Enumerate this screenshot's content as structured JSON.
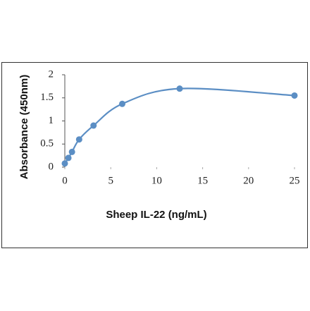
{
  "chart_data": {
    "type": "scatter",
    "x_label": "Sheep IL-22 (ng/mL)",
    "y_label": "Absorbance (450nm)",
    "x": [
      0,
      0.39,
      0.78,
      1.56,
      3.125,
      6.25,
      12.5,
      25
    ],
    "values": [
      0.08,
      0.2,
      0.33,
      0.6,
      0.9,
      1.37,
      1.7,
      1.55
    ],
    "color": "#5b8ec4",
    "smooth": true,
    "xlim": [
      0,
      25
    ],
    "xticks": [
      0,
      5,
      10,
      15,
      20,
      25
    ],
    "ylim": [
      0,
      2
    ],
    "yticks": [
      0,
      0.5,
      1,
      1.5,
      2
    ]
  }
}
